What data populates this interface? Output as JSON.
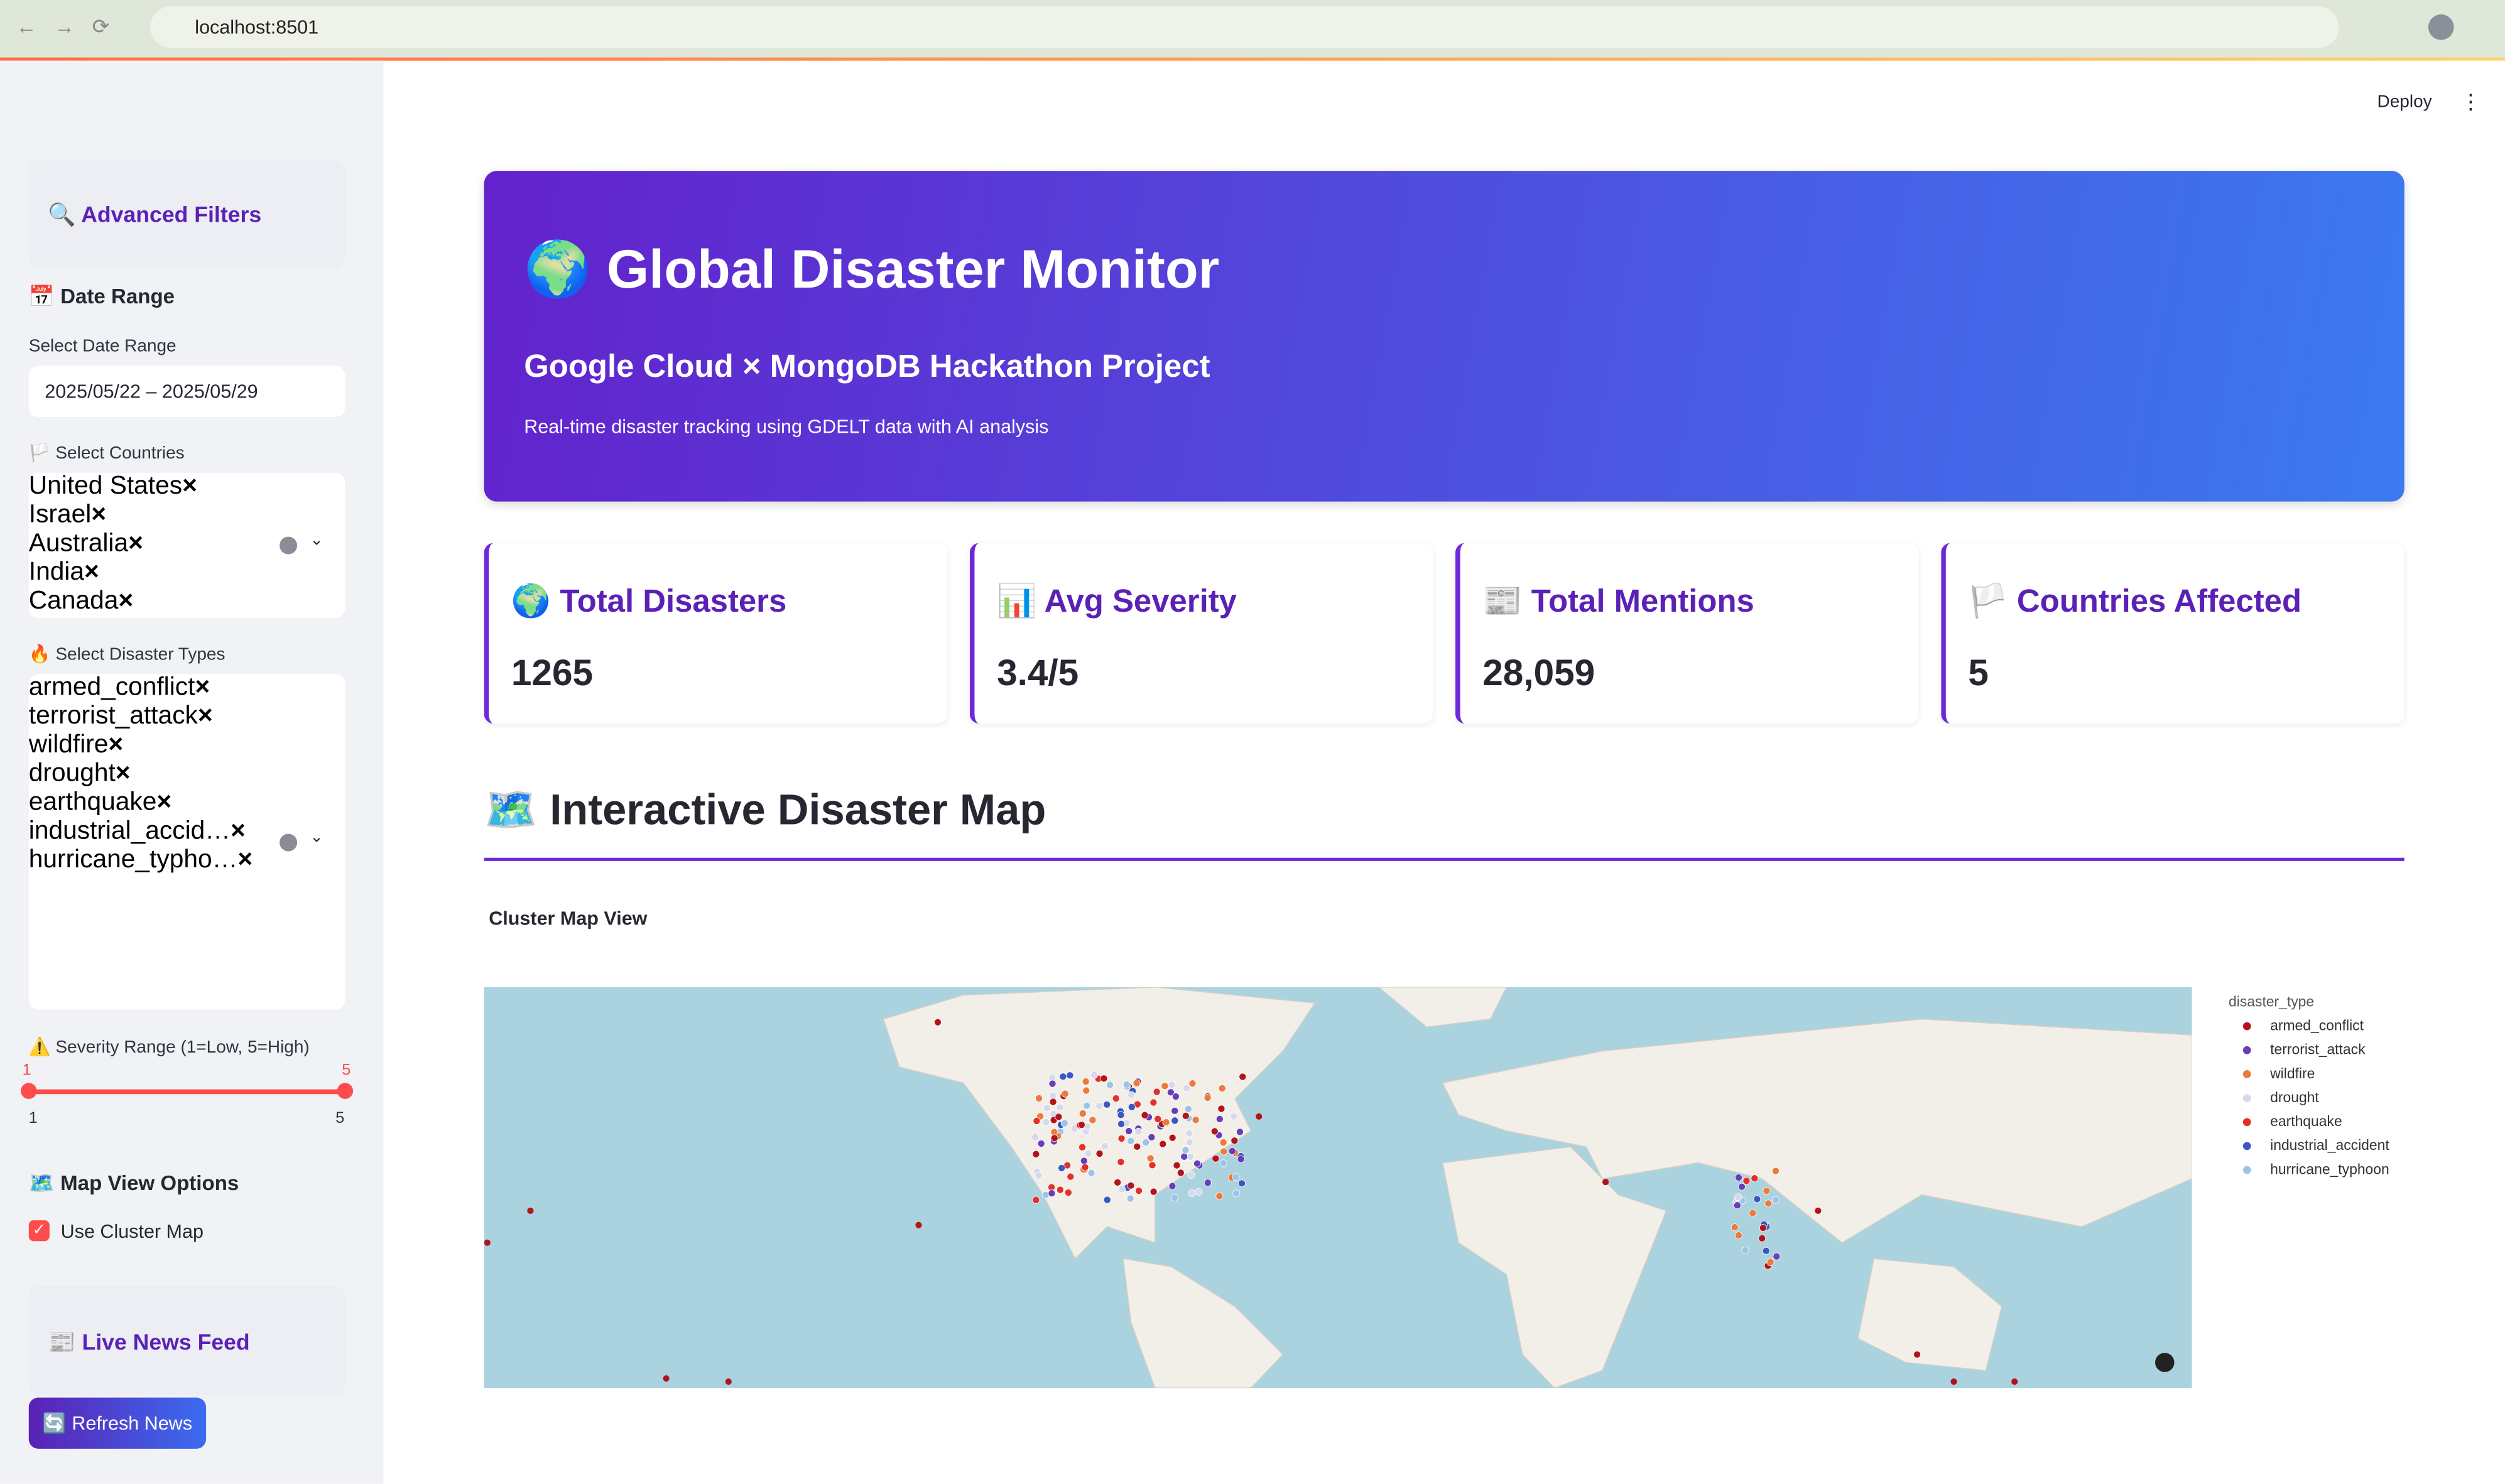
{
  "browser": {
    "url": "localhost:8501"
  },
  "toolbar": {
    "deploy": "Deploy"
  },
  "sidebar": {
    "filters_title": "🔍 Advanced Filters",
    "date_section": "📅 Date Range",
    "date_label": "Select Date Range",
    "date_value": "2025/05/22 – 2025/05/29",
    "countries_label": "🏳️ Select Countries",
    "countries": [
      "United States",
      "Israel",
      "Australia",
      "India",
      "Canada"
    ],
    "types_label": "🔥 Select Disaster Types",
    "types": [
      "armed_conflict",
      "terrorist_attack",
      "wildfire",
      "drought",
      "earthquake",
      "industrial_accid…",
      "hurricane_typho…"
    ],
    "severity_label": "⚠️ Severity Range (1=Low, 5=High)",
    "severity_selected": [
      1,
      5
    ],
    "severity_range": [
      1,
      5
    ],
    "map_options": "🗺️ Map View Options",
    "cluster_option": "Use Cluster Map",
    "news_title": "📰 Live News Feed",
    "refresh": "🔄 Refresh News"
  },
  "header": {
    "title": "🌍 Global Disaster Monitor",
    "subtitle": "Google Cloud × MongoDB Hackathon Project",
    "description": "Real-time disaster tracking using GDELT data with AI analysis"
  },
  "metrics": [
    {
      "label": "🌍 Total Disasters",
      "value": "1265"
    },
    {
      "label": "📊 Avg Severity",
      "value": "3.4/5"
    },
    {
      "label": "📰 Total Mentions",
      "value": "28,059"
    },
    {
      "label": "🏳️ Countries Affected",
      "value": "5"
    }
  ],
  "map": {
    "title": "🗺️ Interactive Disaster Map",
    "subtitle": "Cluster Map View",
    "legend_title": "disaster_type",
    "legend": [
      {
        "name": "armed_conflict",
        "color": "#b3141c"
      },
      {
        "name": "terrorist_attack",
        "color": "#6a3db8"
      },
      {
        "name": "wildfire",
        "color": "#ec7a3c"
      },
      {
        "name": "drought",
        "color": "#d8d8ec"
      },
      {
        "name": "earthquake",
        "color": "#e2302b"
      },
      {
        "name": "industrial_accident",
        "color": "#3a58c2"
      },
      {
        "name": "hurricane_typhoon",
        "color": "#9cc4e8"
      }
    ]
  }
}
